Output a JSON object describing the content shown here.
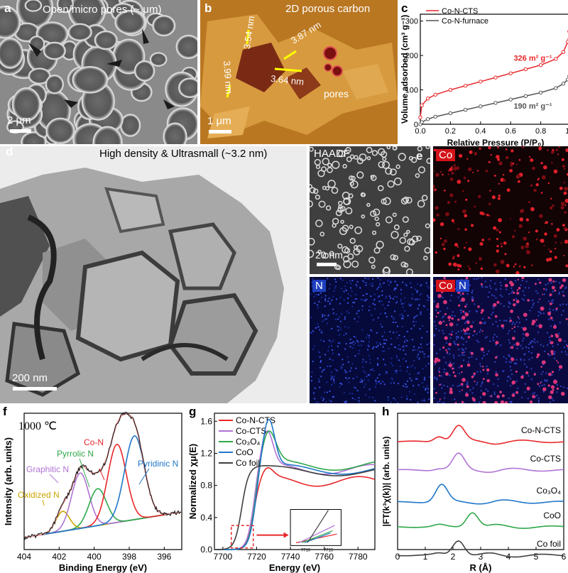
{
  "panel_a": {
    "label": "a",
    "caption": "Open/micro pores (~ μm)",
    "scale": "2 μm"
  },
  "panel_b": {
    "label": "b",
    "caption": "2D porous carbon",
    "scale": "1 μm",
    "measurements": [
      "3.54 nm",
      "3.87 nm",
      "3.64 nm",
      "3.99 nm"
    ],
    "pores_label": "pores"
  },
  "panel_d": {
    "label": "d",
    "caption": "High density & Ultrasmall (~3.2 nm)",
    "scale": "200 nm"
  },
  "panel_e": {
    "label": "e",
    "haadf": "HAADF",
    "scale": "20 nm",
    "co": "Co",
    "n": "N",
    "co2": "Co",
    "n2": "N"
  },
  "panel_f": {
    "label": "f",
    "temp": "1000 ℃",
    "annotations": {
      "co_n": "Co-N",
      "pyrrolic": "Pyrrolic N",
      "pyridinic": "Pyridinic N",
      "graphitic": "Graphitic N",
      "oxidized": "Oxidized N"
    }
  },
  "panel_h": {
    "label": "h"
  },
  "chart_data": [
    {
      "id": "c",
      "type": "line",
      "xlabel": "Relative Pressure (P/P₀)",
      "ylabel": "Volume adsorbed (cm³ g⁻¹)",
      "xlim": [
        0,
        1.0
      ],
      "ylim": [
        0,
        320
      ],
      "xticks": [
        "0.0",
        "0.2",
        "0.4",
        "0.6",
        "0.8",
        "1.0"
      ],
      "yticks": [
        "0",
        "100",
        "200",
        "300"
      ],
      "series": [
        {
          "name": "Co-N-CTS",
          "color": "#e8272a",
          "annotation": "326 m² g⁻¹",
          "x": [
            0.0,
            0.01,
            0.05,
            0.1,
            0.2,
            0.3,
            0.4,
            0.5,
            0.6,
            0.7,
            0.8,
            0.9,
            0.95,
            0.98,
            0.99,
            1.0
          ],
          "y": [
            20,
            55,
            75,
            86,
            100,
            112,
            124,
            136,
            148,
            160,
            172,
            190,
            210,
            240,
            270,
            310
          ]
        },
        {
          "name": "Co-N-furnace",
          "color": "#555555",
          "annotation": "190 m² g⁻¹",
          "x": [
            0.0,
            0.01,
            0.05,
            0.1,
            0.2,
            0.3,
            0.4,
            0.5,
            0.6,
            0.7,
            0.8,
            0.9,
            0.95,
            0.98,
            0.99,
            1.0
          ],
          "y": [
            0,
            6,
            15,
            22,
            32,
            42,
            52,
            62,
            72,
            82,
            92,
            105,
            118,
            130,
            140,
            150
          ]
        }
      ]
    },
    {
      "id": "f",
      "type": "line",
      "xlabel": "Binding Energy (eV)",
      "ylabel": "Intensity (arb. units)",
      "xlim": [
        404,
        395
      ],
      "xticks": [
        "404",
        "402",
        "400",
        "398",
        "396"
      ]
    },
    {
      "id": "g",
      "type": "line",
      "xlabel": "Energy (eV)",
      "ylabel": "Normalized χμ(E)",
      "xlim": [
        7695,
        7790
      ],
      "ylim": [
        0,
        1.7
      ],
      "xticks": [
        "7700",
        "7720",
        "7740",
        "7760",
        "7780"
      ],
      "yticks": [
        "0.0",
        "0.4",
        "0.8",
        "1.2",
        "1.6"
      ],
      "inset_xticks": [
        "7710",
        "7715"
      ],
      "series": [
        {
          "name": "Co-N-CTS",
          "color": "#e8272a"
        },
        {
          "name": "Co-CTS",
          "color": "#b073d6"
        },
        {
          "name": "Co₃O₄",
          "color": "#2ea84a"
        },
        {
          "name": "CoO",
          "color": "#1f77c9"
        },
        {
          "name": "Co foil",
          "color": "#404040"
        }
      ]
    },
    {
      "id": "h",
      "type": "line",
      "xlabel": "R (Å)",
      "ylabel": "|FT(k³χ(k))| (arb. units)",
      "xlim": [
        0,
        6
      ],
      "xticks": [
        "0",
        "1",
        "2",
        "3",
        "4",
        "5",
        "6"
      ],
      "series": [
        {
          "name": "Co-N-CTS",
          "color": "#e8272a"
        },
        {
          "name": "Co-CTS",
          "color": "#b073d6"
        },
        {
          "name": "Co₃O₄",
          "color": "#1f77c9"
        },
        {
          "name": "CoO",
          "color": "#2ea84a"
        },
        {
          "name": "Co foil",
          "color": "#404040"
        }
      ]
    }
  ]
}
